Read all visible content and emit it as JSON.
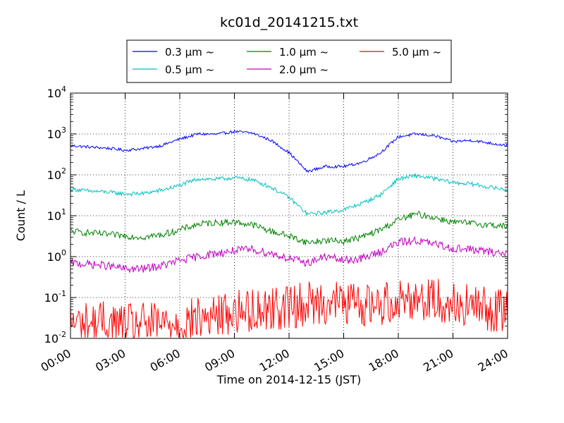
{
  "chart_data": {
    "type": "line",
    "title": "kc01d_20141215.txt",
    "xlabel": "Time on 2014-12-15 (JST)",
    "ylabel": "Count / L",
    "yscale": "log",
    "ylim": [
      0.01,
      10000
    ],
    "yticks": [
      {
        "base": "10",
        "exp": "-2"
      },
      {
        "base": "10",
        "exp": "-1"
      },
      {
        "base": "10",
        "exp": "0"
      },
      {
        "base": "10",
        "exp": "1"
      },
      {
        "base": "10",
        "exp": "2"
      },
      {
        "base": "10",
        "exp": "3"
      },
      {
        "base": "10",
        "exp": "4"
      }
    ],
    "xlim": [
      "00:00",
      "24:00"
    ],
    "xticks": [
      "00:00",
      "03:00",
      "06:00",
      "09:00",
      "12:00",
      "15:00",
      "18:00",
      "21:00",
      "24:00"
    ],
    "grid": true,
    "legend_position": "top",
    "series": [
      {
        "name": "0.3 μm ~",
        "color": "#0000ff",
        "x": [
          "00:00",
          "01:00",
          "02:00",
          "03:00",
          "04:00",
          "05:00",
          "06:00",
          "07:00",
          "08:00",
          "09:00",
          "10:00",
          "11:00",
          "12:00",
          "13:00",
          "14:00",
          "15:00",
          "16:00",
          "17:00",
          "18:00",
          "19:00",
          "20:00",
          "21:00",
          "22:00",
          "23:00",
          "24:00"
        ],
        "values": [
          520,
          480,
          450,
          400,
          440,
          520,
          750,
          1000,
          980,
          1150,
          1050,
          700,
          350,
          120,
          160,
          160,
          200,
          340,
          850,
          1000,
          900,
          650,
          700,
          600,
          520
        ]
      },
      {
        "name": "0.5 μm ~",
        "color": "#00bfbf",
        "x": [
          "00:00",
          "01:00",
          "02:00",
          "03:00",
          "04:00",
          "05:00",
          "06:00",
          "07:00",
          "08:00",
          "09:00",
          "10:00",
          "11:00",
          "12:00",
          "13:00",
          "14:00",
          "15:00",
          "16:00",
          "17:00",
          "18:00",
          "19:00",
          "20:00",
          "21:00",
          "22:00",
          "23:00",
          "24:00"
        ],
        "values": [
          45,
          40,
          38,
          34,
          35,
          42,
          55,
          80,
          78,
          85,
          75,
          50,
          28,
          11,
          12,
          14,
          20,
          32,
          80,
          95,
          80,
          65,
          60,
          50,
          43
        ]
      },
      {
        "name": "1.0 μm ~",
        "color": "#008000",
        "x": [
          "00:00",
          "01:00",
          "02:00",
          "03:00",
          "04:00",
          "05:00",
          "06:00",
          "07:00",
          "08:00",
          "09:00",
          "10:00",
          "11:00",
          "12:00",
          "13:00",
          "14:00",
          "15:00",
          "16:00",
          "17:00",
          "18:00",
          "19:00",
          "20:00",
          "21:00",
          "22:00",
          "23:00",
          "24:00"
        ],
        "values": [
          4.2,
          3.8,
          3.5,
          3.2,
          3.0,
          3.4,
          4.5,
          6.2,
          6.8,
          7.0,
          6.0,
          4.2,
          3.2,
          2.2,
          2.5,
          2.4,
          3.0,
          4.5,
          8.0,
          11.0,
          9.0,
          7.0,
          6.5,
          6.0,
          5.5
        ]
      },
      {
        "name": "2.0 μm ~",
        "color": "#bf00bf",
        "x": [
          "00:00",
          "01:00",
          "02:00",
          "03:00",
          "04:00",
          "05:00",
          "06:00",
          "07:00",
          "08:00",
          "09:00",
          "10:00",
          "11:00",
          "12:00",
          "13:00",
          "14:00",
          "15:00",
          "16:00",
          "17:00",
          "18:00",
          "19:00",
          "20:00",
          "21:00",
          "22:00",
          "23:00",
          "24:00"
        ],
        "values": [
          0.7,
          0.65,
          0.6,
          0.5,
          0.5,
          0.6,
          0.8,
          1.0,
          1.2,
          1.4,
          1.5,
          1.2,
          0.9,
          0.7,
          1.0,
          0.8,
          0.9,
          1.3,
          2.2,
          2.5,
          2.0,
          1.6,
          1.5,
          1.3,
          1.2
        ]
      },
      {
        "name": "5.0 μm ~",
        "color": "#ff0000",
        "x": [
          "00:00",
          "01:00",
          "02:00",
          "03:00",
          "04:00",
          "05:00",
          "06:00",
          "07:00",
          "08:00",
          "09:00",
          "10:00",
          "11:00",
          "12:00",
          "13:00",
          "14:00",
          "15:00",
          "16:00",
          "17:00",
          "18:00",
          "19:00",
          "20:00",
          "21:00",
          "22:00",
          "23:00",
          "24:00"
        ],
        "values": [
          0.025,
          0.022,
          0.025,
          0.02,
          0.022,
          0.022,
          0.025,
          0.03,
          0.035,
          0.045,
          0.05,
          0.055,
          0.06,
          0.07,
          0.08,
          0.075,
          0.065,
          0.07,
          0.09,
          0.1,
          0.09,
          0.07,
          0.06,
          0.05,
          0.045
        ]
      }
    ]
  }
}
